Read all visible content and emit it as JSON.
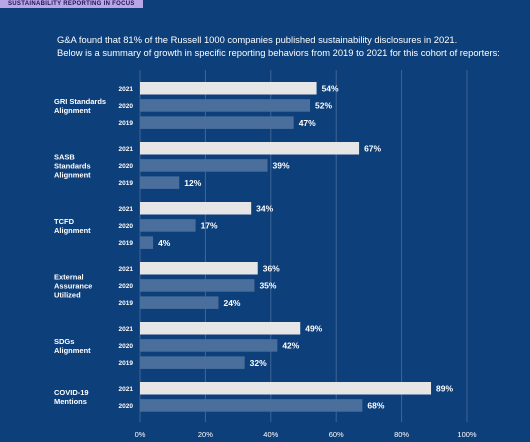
{
  "banner": {
    "label": "SUSTAINABILITY REPORTING IN FOCUS"
  },
  "intro": {
    "line1": "G&A found that 81% of the Russell 1000 companies published sustainability disclosures in 2021.",
    "line2": "Below is a summary of growth in specific reporting behaviors from 2019 to 2021 for this cohort of reporters:"
  },
  "colors": {
    "background": "#0d3f7a",
    "bar_latest": "#e6e6e6",
    "bar_previous": "#4a6f9d",
    "gridline": "#3f6697",
    "text": "#ffffff"
  },
  "chart_data": {
    "type": "bar",
    "orientation": "horizontal",
    "xlim": [
      0,
      100
    ],
    "x_ticks": [
      "0%",
      "20%",
      "40%",
      "60%",
      "80%",
      "100%"
    ],
    "grid": true,
    "value_suffix": "%",
    "groups": [
      {
        "label": [
          "GRI Standards",
          "Alignment"
        ],
        "bars": [
          {
            "year": "2021",
            "value": 54
          },
          {
            "year": "2020",
            "value": 52
          },
          {
            "year": "2019",
            "value": 47
          }
        ]
      },
      {
        "label": [
          "SASB",
          "Standards",
          "Alignment"
        ],
        "bars": [
          {
            "year": "2021",
            "value": 67
          },
          {
            "year": "2020",
            "value": 39
          },
          {
            "year": "2019",
            "value": 12
          }
        ]
      },
      {
        "label": [
          "TCFD",
          "Alignment"
        ],
        "bars": [
          {
            "year": "2021",
            "value": 34
          },
          {
            "year": "2020",
            "value": 17
          },
          {
            "year": "2019",
            "value": 4
          }
        ]
      },
      {
        "label": [
          "External",
          "Assurance",
          "Utilized"
        ],
        "bars": [
          {
            "year": "2021",
            "value": 36
          },
          {
            "year": "2020",
            "value": 35
          },
          {
            "year": "2019",
            "value": 24
          }
        ]
      },
      {
        "label": [
          "SDGs",
          "Alignment"
        ],
        "bars": [
          {
            "year": "2021",
            "value": 49
          },
          {
            "year": "2020",
            "value": 42
          },
          {
            "year": "2019",
            "value": 32
          }
        ]
      },
      {
        "label": [
          "COVID-19",
          "Mentions"
        ],
        "bars": [
          {
            "year": "2021",
            "value": 89
          },
          {
            "year": "2020",
            "value": 68
          }
        ]
      }
    ]
  }
}
